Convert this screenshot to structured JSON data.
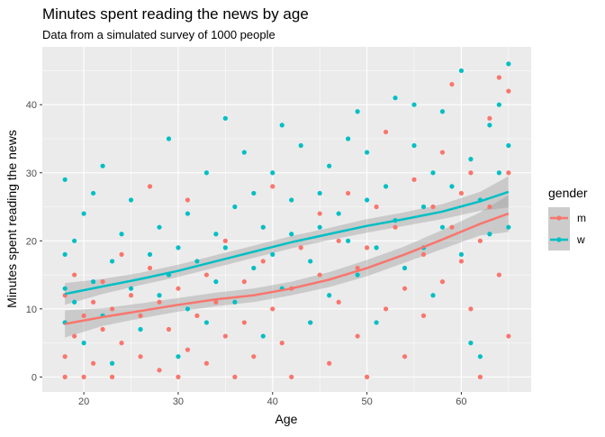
{
  "chart_data": {
    "type": "scatter",
    "title": "Minutes spent reading the news by age",
    "subtitle": "Data from a simulated survey of 1000 people",
    "xlabel": "Age",
    "ylabel": "Minutes spent reading the news",
    "xlim": [
      15.6,
      67.4
    ],
    "ylim": [
      -2.2,
      48.5
    ],
    "xticks": [
      20,
      30,
      40,
      50,
      60
    ],
    "yticks": [
      0,
      10,
      20,
      30,
      40
    ],
    "grid": true,
    "legend": {
      "title": "gender",
      "position": "right",
      "entries": [
        "m",
        "w"
      ]
    },
    "colors": {
      "m": "#F8766D",
      "w": "#00BFC4",
      "panel": "#EBEBEB",
      "band": "#999999"
    },
    "series": [
      {
        "name": "m",
        "points": [
          [
            18,
            0
          ],
          [
            18,
            3
          ],
          [
            18,
            8
          ],
          [
            18,
            12
          ],
          [
            19,
            6
          ],
          [
            19,
            15
          ],
          [
            20,
            0
          ],
          [
            20,
            9
          ],
          [
            21,
            11
          ],
          [
            21,
            2
          ],
          [
            22,
            7
          ],
          [
            22,
            14
          ],
          [
            23,
            0
          ],
          [
            23,
            10
          ],
          [
            24,
            5
          ],
          [
            24,
            18
          ],
          [
            25,
            12
          ],
          [
            26,
            3
          ],
          [
            26,
            9
          ],
          [
            27,
            16
          ],
          [
            27,
            28
          ],
          [
            28,
            1
          ],
          [
            28,
            11
          ],
          [
            29,
            7
          ],
          [
            30,
            13
          ],
          [
            30,
            0
          ],
          [
            31,
            4
          ],
          [
            31,
            26
          ],
          [
            32,
            9
          ],
          [
            33,
            15
          ],
          [
            33,
            2
          ],
          [
            34,
            11
          ],
          [
            35,
            20
          ],
          [
            35,
            6
          ],
          [
            36,
            0
          ],
          [
            37,
            14
          ],
          [
            37,
            8
          ],
          [
            38,
            3
          ],
          [
            39,
            17
          ],
          [
            39,
            22
          ],
          [
            40,
            10
          ],
          [
            40,
            28
          ],
          [
            41,
            5
          ],
          [
            42,
            13
          ],
          [
            42,
            0
          ],
          [
            43,
            19
          ],
          [
            44,
            8
          ],
          [
            45,
            24
          ],
          [
            45,
            15
          ],
          [
            46,
            2
          ],
          [
            47,
            11
          ],
          [
            47,
            20
          ],
          [
            48,
            27
          ],
          [
            49,
            6
          ],
          [
            49,
            16
          ],
          [
            50,
            19
          ],
          [
            50,
            0
          ],
          [
            51,
            25
          ],
          [
            52,
            10
          ],
          [
            52,
            36
          ],
          [
            53,
            22
          ],
          [
            54,
            13
          ],
          [
            54,
            3
          ],
          [
            55,
            29
          ],
          [
            56,
            18
          ],
          [
            56,
            9
          ],
          [
            57,
            25
          ],
          [
            58,
            33
          ],
          [
            58,
            14
          ],
          [
            59,
            22
          ],
          [
            59,
            43
          ],
          [
            60,
            27
          ],
          [
            60,
            17
          ],
          [
            61,
            30
          ],
          [
            61,
            10
          ],
          [
            62,
            20
          ],
          [
            62,
            0
          ],
          [
            63,
            38
          ],
          [
            63,
            25
          ],
          [
            64,
            44
          ],
          [
            64,
            15
          ],
          [
            65,
            42
          ],
          [
            65,
            6
          ],
          [
            65,
            30
          ]
        ]
      },
      {
        "name": "w",
        "points": [
          [
            18,
            29
          ],
          [
            18,
            13
          ],
          [
            18,
            8
          ],
          [
            18,
            18
          ],
          [
            19,
            11
          ],
          [
            19,
            20
          ],
          [
            20,
            24
          ],
          [
            20,
            5
          ],
          [
            21,
            14
          ],
          [
            21,
            27
          ],
          [
            22,
            31
          ],
          [
            22,
            9
          ],
          [
            23,
            17
          ],
          [
            23,
            2
          ],
          [
            24,
            21
          ],
          [
            25,
            13
          ],
          [
            25,
            26
          ],
          [
            26,
            7
          ],
          [
            27,
            18
          ],
          [
            28,
            22
          ],
          [
            28,
            12
          ],
          [
            29,
            35
          ],
          [
            29,
            15
          ],
          [
            30,
            19
          ],
          [
            30,
            3
          ],
          [
            31,
            24
          ],
          [
            31,
            10
          ],
          [
            32,
            17
          ],
          [
            33,
            30
          ],
          [
            33,
            8
          ],
          [
            34,
            21
          ],
          [
            34,
            14
          ],
          [
            35,
            38
          ],
          [
            35,
            19
          ],
          [
            36,
            25
          ],
          [
            36,
            11
          ],
          [
            37,
            33
          ],
          [
            38,
            16
          ],
          [
            38,
            27
          ],
          [
            39,
            22
          ],
          [
            39,
            6
          ],
          [
            40,
            30
          ],
          [
            40,
            18
          ],
          [
            41,
            37
          ],
          [
            41,
            13
          ],
          [
            42,
            21
          ],
          [
            42,
            26
          ],
          [
            43,
            34
          ],
          [
            44,
            17
          ],
          [
            44,
            8
          ],
          [
            45,
            27
          ],
          [
            45,
            22
          ],
          [
            46,
            31
          ],
          [
            46,
            12
          ],
          [
            47,
            24
          ],
          [
            48,
            20
          ],
          [
            48,
            35
          ],
          [
            49,
            39
          ],
          [
            49,
            15
          ],
          [
            50,
            26
          ],
          [
            50,
            33
          ],
          [
            51,
            19
          ],
          [
            51,
            8
          ],
          [
            52,
            28
          ],
          [
            53,
            41
          ],
          [
            53,
            23
          ],
          [
            54,
            16
          ],
          [
            55,
            34
          ],
          [
            55,
            40
          ],
          [
            56,
            25
          ],
          [
            56,
            19
          ],
          [
            57,
            30
          ],
          [
            57,
            12
          ],
          [
            58,
            39
          ],
          [
            58,
            22
          ],
          [
            59,
            28
          ],
          [
            60,
            45
          ],
          [
            60,
            18
          ],
          [
            61,
            5
          ],
          [
            61,
            32
          ],
          [
            62,
            26
          ],
          [
            62,
            3
          ],
          [
            63,
            37
          ],
          [
            63,
            21
          ],
          [
            64,
            40
          ],
          [
            64,
            30
          ],
          [
            65,
            46
          ],
          [
            65,
            22
          ],
          [
            65,
            34
          ]
        ]
      }
    ],
    "smooth": [
      {
        "name": "m",
        "x": [
          18,
          22,
          26,
          30,
          34,
          38,
          42,
          46,
          50,
          54,
          58,
          62,
          65
        ],
        "y": [
          7.8,
          8.8,
          9.7,
          10.6,
          11.4,
          12.0,
          13.0,
          14.3,
          16.0,
          18.0,
          20.2,
          22.5,
          24.0
        ],
        "lower": [
          5.8,
          7.5,
          8.6,
          9.6,
          10.4,
          11.0,
          12.0,
          13.2,
          14.8,
          16.8,
          18.8,
          20.8,
          21.3
        ],
        "upper": [
          9.8,
          10.1,
          10.8,
          11.6,
          12.4,
          13.0,
          14.0,
          15.4,
          17.2,
          19.2,
          21.6,
          24.2,
          26.7
        ]
      },
      {
        "name": "w",
        "x": [
          18,
          22,
          26,
          30,
          34,
          38,
          42,
          46,
          50,
          54,
          58,
          62,
          65
        ],
        "y": [
          12.2,
          13.3,
          14.4,
          15.6,
          17.0,
          18.4,
          19.8,
          21.0,
          22.2,
          23.2,
          24.3,
          25.8,
          27.2
        ],
        "lower": [
          10.6,
          12.2,
          13.5,
          14.7,
          16.1,
          17.5,
          18.9,
          20.1,
          21.2,
          22.2,
          23.2,
          24.4,
          24.9
        ],
        "upper": [
          13.8,
          14.4,
          15.3,
          16.5,
          17.9,
          19.3,
          20.7,
          21.9,
          23.2,
          24.2,
          25.4,
          27.2,
          29.5
        ]
      }
    ]
  }
}
